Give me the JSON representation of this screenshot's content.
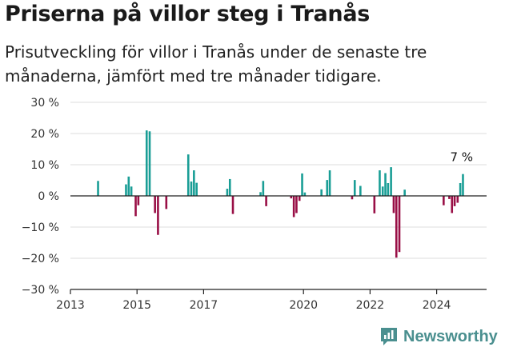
{
  "title": "Priserna på villor steg i Tranås",
  "subtitle": "Prisutveckling för villor i Tranås under de senaste tre månaderna, jämfört med tre månader tidigare.",
  "brand": "Newsworthy",
  "colors": {
    "positive": "#1a9e96",
    "negative": "#990f46",
    "grid": "#dddddd",
    "axis": "#222222",
    "brand": "#4a8f8f"
  },
  "chart_data": {
    "type": "bar",
    "ylim": [
      -30,
      30
    ],
    "y_ticks": [
      30,
      20,
      10,
      0,
      -10,
      -20,
      -30
    ],
    "y_tick_labels": [
      "30 %",
      "20 %",
      "10 %",
      "0 %",
      "−10 %",
      "−20 %",
      "−30 %"
    ],
    "x_ticks": [
      2013,
      2015,
      2017,
      2020,
      2022,
      2024
    ],
    "x_tick_labels": [
      "2013",
      "2015",
      "2017",
      "2020",
      "2022",
      "2024"
    ],
    "xlim": [
      2013.0,
      2025.5
    ],
    "grid": true,
    "annotation": {
      "text": "7 %",
      "x": 2024.75,
      "y": 7
    },
    "values": [
      {
        "x": 2013.83,
        "y": 4.8
      },
      {
        "x": 2014.67,
        "y": 3.7
      },
      {
        "x": 2014.75,
        "y": 6.2
      },
      {
        "x": 2014.83,
        "y": 3.0
      },
      {
        "x": 2014.96,
        "y": -6.5
      },
      {
        "x": 2015.04,
        "y": -3.0
      },
      {
        "x": 2015.29,
        "y": 21.0
      },
      {
        "x": 2015.38,
        "y": 20.7
      },
      {
        "x": 2015.54,
        "y": -5.5
      },
      {
        "x": 2015.63,
        "y": -12.5
      },
      {
        "x": 2015.88,
        "y": -4.2
      },
      {
        "x": 2016.54,
        "y": 13.3
      },
      {
        "x": 2016.63,
        "y": 4.6
      },
      {
        "x": 2016.71,
        "y": 8.2
      },
      {
        "x": 2016.79,
        "y": 4.2
      },
      {
        "x": 2017.71,
        "y": 2.3
      },
      {
        "x": 2017.79,
        "y": 5.4
      },
      {
        "x": 2017.88,
        "y": -5.8
      },
      {
        "x": 2018.71,
        "y": 1.2
      },
      {
        "x": 2018.79,
        "y": 4.8
      },
      {
        "x": 2018.88,
        "y": -3.3
      },
      {
        "x": 2019.63,
        "y": -0.8
      },
      {
        "x": 2019.71,
        "y": -6.8
      },
      {
        "x": 2019.79,
        "y": -5.5
      },
      {
        "x": 2019.88,
        "y": -1.6
      },
      {
        "x": 2019.96,
        "y": 7.2
      },
      {
        "x": 2020.04,
        "y": 1.1
      },
      {
        "x": 2020.54,
        "y": 2.1
      },
      {
        "x": 2020.71,
        "y": 5.1
      },
      {
        "x": 2020.79,
        "y": 8.2
      },
      {
        "x": 2021.46,
        "y": -1.1
      },
      {
        "x": 2021.54,
        "y": 5.1
      },
      {
        "x": 2021.71,
        "y": 3.2
      },
      {
        "x": 2022.13,
        "y": -5.6
      },
      {
        "x": 2022.29,
        "y": 8.2
      },
      {
        "x": 2022.38,
        "y": 3.0
      },
      {
        "x": 2022.46,
        "y": 7.3
      },
      {
        "x": 2022.54,
        "y": 4.1
      },
      {
        "x": 2022.63,
        "y": 9.2
      },
      {
        "x": 2022.71,
        "y": -5.5
      },
      {
        "x": 2022.79,
        "y": -19.8
      },
      {
        "x": 2022.88,
        "y": -18.0
      },
      {
        "x": 2023.04,
        "y": 2.0
      },
      {
        "x": 2024.21,
        "y": -3.0
      },
      {
        "x": 2024.38,
        "y": -1.0
      },
      {
        "x": 2024.46,
        "y": -5.5
      },
      {
        "x": 2024.54,
        "y": -3.3
      },
      {
        "x": 2024.63,
        "y": -2.2
      },
      {
        "x": 2024.71,
        "y": 4.1
      },
      {
        "x": 2024.79,
        "y": 7.0
      }
    ]
  }
}
